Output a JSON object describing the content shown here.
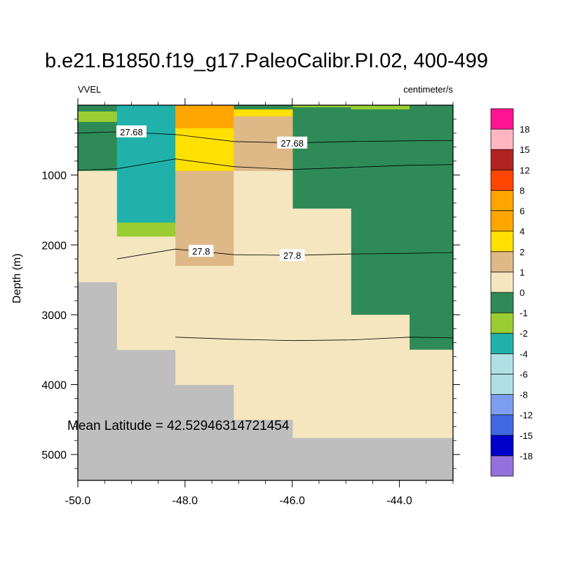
{
  "chart_data": {
    "type": "heatmap",
    "title": "b.e21.B1850.f19_g17.PaleoCalibr.PI.02, 400-499",
    "variable_label": "VVEL",
    "units_label": "centimeter/s",
    "ylabel": "Depth (m)",
    "annotation": "Mean Latitude = 42.52946314721454",
    "xlim": [
      -50.0,
      -43.0
    ],
    "ylim": [
      0,
      5370
    ],
    "y_reversed": true,
    "x_ticks": [
      -50.0,
      -48.0,
      -46.0,
      -44.0
    ],
    "x_tick_labels": [
      "-50.0",
      "-48.0",
      "-46.0",
      "-44.0"
    ],
    "y_ticks": [
      1000,
      2000,
      3000,
      4000,
      5000
    ],
    "y_tick_labels": [
      "1000",
      "2000",
      "3000",
      "4000",
      "5000"
    ],
    "land_color": "#bebebe",
    "colorbar": {
      "colors": [
        "#9370db",
        "#0000cd",
        "#4169e1",
        "#7b9eef",
        "#b0e0e6",
        "#b0e0e6",
        "#20b2aa",
        "#9acd32",
        "#2e8b57",
        "#f5e6c0",
        "#deb887",
        "#ffe000",
        "#ffa500",
        "#ffa500",
        "#ff4500",
        "#b22222",
        "#ffb6c1",
        "#ff1493"
      ],
      "labels": [
        "-18",
        "-15",
        "-12",
        "-8",
        "-6",
        "-4",
        "-2",
        "-1",
        "0",
        "1",
        "2",
        "4",
        "6",
        "8",
        "12",
        "15",
        "18"
      ]
    },
    "cells": [
      {
        "x": [
          -50.0,
          -49.27
        ],
        "depth": [
          0,
          90
        ],
        "value": -0.5
      },
      {
        "x": [
          -50.0,
          -49.27
        ],
        "depth": [
          90,
          240
        ],
        "value": -1.5
      },
      {
        "x": [
          -50.0,
          -49.27
        ],
        "depth": [
          240,
          940
        ],
        "value": -0.5
      },
      {
        "x": [
          -50.0,
          -49.27
        ],
        "depth": [
          940,
          2530
        ],
        "value": 0.5
      },
      {
        "x": [
          -49.27,
          -48.18
        ],
        "depth": [
          0,
          1680
        ],
        "value": -3
      },
      {
        "x": [
          -49.27,
          -48.18
        ],
        "depth": [
          1680,
          1880
        ],
        "value": -1.5
      },
      {
        "x": [
          -49.27,
          -48.18
        ],
        "depth": [
          1880,
          3500
        ],
        "value": 0.5
      },
      {
        "x": [
          -48.18,
          -47.09
        ],
        "depth": [
          0,
          330
        ],
        "value": 5
      },
      {
        "x": [
          -48.18,
          -47.09
        ],
        "depth": [
          330,
          940
        ],
        "value": 3
      },
      {
        "x": [
          -48.18,
          -47.09
        ],
        "depth": [
          940,
          2300
        ],
        "value": 1.5
      },
      {
        "x": [
          -48.18,
          -47.09
        ],
        "depth": [
          2300,
          4000
        ],
        "value": 0.5
      },
      {
        "x": [
          -47.09,
          -45.99
        ],
        "depth": [
          0,
          60
        ],
        "value": -0.5
      },
      {
        "x": [
          -47.09,
          -45.99
        ],
        "depth": [
          60,
          160
        ],
        "value": 3
      },
      {
        "x": [
          -47.09,
          -45.99
        ],
        "depth": [
          160,
          940
        ],
        "value": 1.5
      },
      {
        "x": [
          -47.09,
          -45.99
        ],
        "depth": [
          940,
          4500
        ],
        "value": 0.5
      },
      {
        "x": [
          -45.99,
          -44.9
        ],
        "depth": [
          0,
          30
        ],
        "value": -1.5
      },
      {
        "x": [
          -45.99,
          -44.9
        ],
        "depth": [
          30,
          1480
        ],
        "value": -0.5
      },
      {
        "x": [
          -45.99,
          -44.9
        ],
        "depth": [
          1480,
          4760
        ],
        "value": 0.5
      },
      {
        "x": [
          -44.9,
          -43.81
        ],
        "depth": [
          0,
          60
        ],
        "value": -1.5
      },
      {
        "x": [
          -44.9,
          -43.81
        ],
        "depth": [
          60,
          3000
        ],
        "value": -0.5
      },
      {
        "x": [
          -44.9,
          -43.81
        ],
        "depth": [
          3000,
          4760
        ],
        "value": 0.5
      },
      {
        "x": [
          -43.81,
          -43.0
        ],
        "depth": [
          0,
          3500
        ],
        "value": -0.5
      },
      {
        "x": [
          -43.81,
          -43.0
        ],
        "depth": [
          3500,
          4760
        ],
        "value": 0.5
      }
    ],
    "contours": [
      {
        "label": "27.68",
        "points": [
          [
            -50.0,
            400
          ],
          [
            -49.27,
            380
          ],
          [
            -48.18,
            420
          ],
          [
            -47.09,
            520
          ],
          [
            -45.99,
            540
          ],
          [
            -44.9,
            520
          ],
          [
            -43.81,
            510
          ],
          [
            -43.0,
            505
          ]
        ],
        "label_at": [
          [
            -49.0,
            380
          ],
          [
            -46.0,
            540
          ]
        ]
      },
      {
        "label": "",
        "points": [
          [
            -50.0,
            930
          ],
          [
            -49.27,
            910
          ],
          [
            -48.18,
            770
          ],
          [
            -47.09,
            880
          ],
          [
            -45.99,
            920
          ],
          [
            -44.9,
            890
          ],
          [
            -43.81,
            860
          ],
          [
            -43.0,
            850
          ]
        ],
        "label_at": []
      },
      {
        "label": "27.8",
        "points": [
          [
            -49.27,
            2200
          ],
          [
            -48.18,
            2060
          ],
          [
            -47.09,
            2140
          ],
          [
            -45.99,
            2150
          ],
          [
            -44.9,
            2130
          ],
          [
            -43.81,
            2120
          ],
          [
            -43.0,
            2110
          ]
        ],
        "label_at": [
          [
            -47.7,
            2090
          ],
          [
            -46.0,
            2150
          ]
        ]
      },
      {
        "label": "",
        "points": [
          [
            -48.18,
            3320
          ],
          [
            -47.09,
            3350
          ],
          [
            -45.99,
            3370
          ],
          [
            -44.9,
            3360
          ],
          [
            -43.81,
            3320
          ],
          [
            -43.0,
            3330
          ]
        ],
        "label_at": []
      }
    ]
  }
}
